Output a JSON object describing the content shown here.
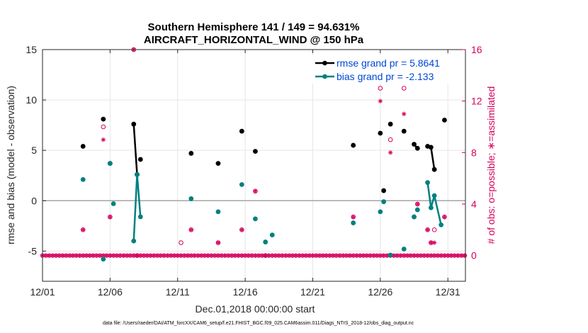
{
  "chart_data": {
    "type": "scatter",
    "title": "Southern Hemisphere 141 / 149 = 94.631%",
    "subtitle": "AIRCRAFT_HORIZONTAL_WIND @ 150 hPa",
    "xlabel": "Dec.01,2018 00:00:00 start",
    "ylabel": "rmse and bias (model - observation)",
    "ylabel_right": "# of obs: o=possible; ∗=assimilated",
    "xlim": [
      1,
      32.3
    ],
    "ylim": [
      -8,
      15
    ],
    "ylim_right": [
      -2,
      16
    ],
    "x_ticks": [
      1,
      6,
      11,
      16,
      21,
      26,
      31
    ],
    "x_tick_labels": [
      "12/01",
      "12/06",
      "12/11",
      "12/16",
      "12/21",
      "12/26",
      "12/31"
    ],
    "y_ticks": [
      -5,
      0,
      5,
      10,
      15
    ],
    "y_tick_labels": [
      "-5",
      "0",
      "5",
      "10",
      "15"
    ],
    "y_ticks_right": [
      0,
      4,
      8,
      12,
      16
    ],
    "y_tick_labels_right": [
      "0",
      "4",
      "8",
      "12",
      "16"
    ],
    "legend": [
      {
        "label": "rmse grand pr = 5.8641",
        "color": "#000000"
      },
      {
        "label": "bias grand pr = -2.133",
        "color": "#008080"
      }
    ],
    "legend_location": "top-right",
    "zero_line": 0,
    "series": [
      {
        "name": "rmse",
        "color": "#000000",
        "x": [
          4.0,
          5.5,
          6.0,
          7.75,
          8.0,
          8.25,
          12.0,
          14.0,
          15.75,
          16.75,
          24.0,
          26.0,
          26.25,
          26.75,
          27.75,
          28.5,
          28.75,
          29.5,
          29.75,
          30.0,
          30.75
        ],
        "y": [
          5.4,
          8.1,
          3.7,
          7.6,
          2.6,
          4.1,
          4.7,
          3.7,
          6.9,
          4.9,
          5.5,
          6.7,
          1.0,
          7.6,
          6.9,
          5.6,
          5.2,
          5.4,
          5.3,
          3.1,
          8.0
        ],
        "connected_pairs": [
          [
            7.75,
            8.0
          ],
          [
            28.5,
            28.75
          ],
          [
            29.5,
            29.75
          ],
          [
            29.75,
            30.0
          ]
        ]
      },
      {
        "name": "bias",
        "color": "#008080",
        "x": [
          4.0,
          5.5,
          6.0,
          6.25,
          7.75,
          8.0,
          8.25,
          12.0,
          14.0,
          15.75,
          16.75,
          17.5,
          18.0,
          24.0,
          26.0,
          26.25,
          26.75,
          27.75,
          28.5,
          28.75,
          29.5,
          29.75,
          30.0,
          30.5
        ],
        "y": [
          2.1,
          -5.8,
          3.7,
          -0.3,
          -4.0,
          2.6,
          -1.6,
          0.2,
          -1.1,
          1.6,
          -1.8,
          -4.1,
          -3.4,
          -2.2,
          -1.1,
          -0.1,
          -5.4,
          -4.8,
          -1.6,
          -0.9,
          1.8,
          -0.7,
          0.5,
          -2.4
        ],
        "connected_pairs": [
          [
            7.75,
            8.0
          ],
          [
            8.0,
            8.25
          ],
          [
            29.5,
            29.75
          ],
          [
            29.75,
            30.0
          ],
          [
            30.0,
            30.5
          ]
        ]
      },
      {
        "name": "# of obs possible",
        "marker": "o",
        "color": "#d6005c",
        "axis": "right",
        "x": [
          4.0,
          5.5,
          6.0,
          7.75,
          8.0,
          11.25,
          12.0,
          14.0,
          15.75,
          16.75,
          17.5,
          24.0,
          26.0,
          26.75,
          27.75,
          28.5,
          28.75,
          29.5,
          29.75,
          30.0,
          30.75
        ],
        "y": [
          2,
          10,
          3,
          16,
          0,
          1,
          2,
          1,
          2,
          5,
          0,
          3,
          13,
          9,
          13,
          3,
          4,
          2,
          1,
          2,
          3
        ]
      },
      {
        "name": "# of obs assimilated",
        "marker": "*",
        "color": "#d6005c",
        "axis": "right",
        "x": [
          4.0,
          5.5,
          6.0,
          7.75,
          8.0,
          12.0,
          14.0,
          15.75,
          16.75,
          17.5,
          24.0,
          26.0,
          26.75,
          27.75,
          28.5,
          28.75,
          29.5,
          29.75,
          30.0,
          30.75
        ],
        "y": [
          2,
          9,
          3,
          16,
          0,
          2,
          1,
          2,
          5,
          0,
          3,
          12,
          8,
          11,
          3,
          4,
          2,
          1,
          1,
          3
        ]
      },
      {
        "name": "zero-obs baseline",
        "marker": "*o",
        "color": "#d6005c",
        "axis": "right",
        "value": 0,
        "x_start": 1,
        "x_end": 32.3,
        "step": 0.25
      }
    ]
  },
  "footer": "data file: /Users/raeder/DAI/ATM_forcXX/CAM6_setup/f.e21.FHIST_BGC.f09_025.CAM6assim.011/Diags_NTrS_2018-12/obs_diag_output.nc"
}
